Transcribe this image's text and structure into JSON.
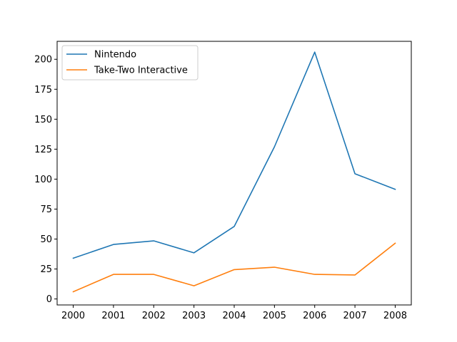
{
  "chart_data": {
    "type": "line",
    "title": "",
    "xlabel": "",
    "ylabel": "",
    "x": [
      2000,
      2001,
      2002,
      2003,
      2004,
      2005,
      2006,
      2007,
      2008
    ],
    "xlim": [
      1999.6,
      2008.4
    ],
    "ylim": [
      -5,
      215
    ],
    "yticks": [
      0,
      25,
      50,
      75,
      100,
      125,
      150,
      175,
      200
    ],
    "grid": false,
    "legend_position": "top-left",
    "series": [
      {
        "name": "Nintendo",
        "color": "#1f77b4",
        "values": [
          34,
          45.5,
          48.5,
          38.5,
          60.5,
          127,
          206,
          104.5,
          91.5
        ]
      },
      {
        "name": "Take-Two Interactive",
        "color": "#ff7f0e",
        "values": [
          6,
          20.5,
          20.5,
          11,
          24.5,
          26.5,
          20.5,
          20,
          46.5
        ]
      }
    ]
  }
}
